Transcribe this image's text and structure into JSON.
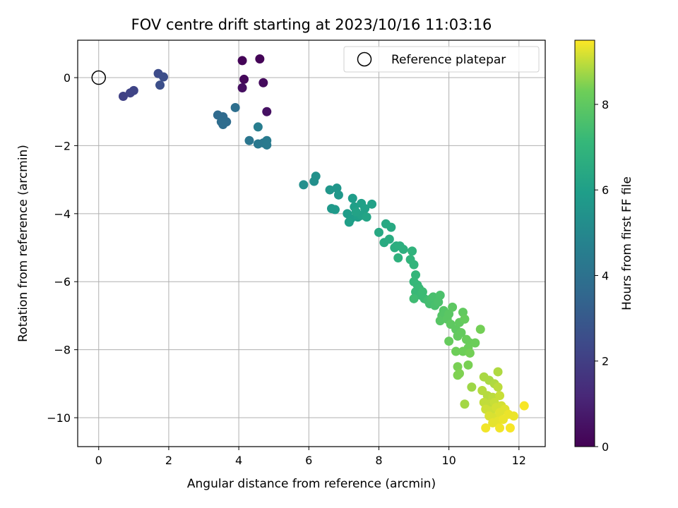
{
  "chart_data": {
    "type": "scatter",
    "title": "FOV centre drift starting at 2023/10/16 11:03:16",
    "xlabel": "Angular distance from reference (arcmin)",
    "ylabel": "Rotation from reference (arcmin)",
    "xlim": [
      -0.6,
      12.75
    ],
    "ylim": [
      -10.85,
      1.1
    ],
    "xticks": [
      0,
      2,
      4,
      6,
      8,
      10,
      12
    ],
    "yticks": [
      0,
      -2,
      -4,
      -6,
      -8,
      -10
    ],
    "xtick_labels": [
      "0",
      "2",
      "4",
      "6",
      "8",
      "10",
      "12"
    ],
    "ytick_labels": [
      "0",
      "−2",
      "−4",
      "−6",
      "−8",
      "−10"
    ],
    "grid": true,
    "legend": {
      "placement": "top-right",
      "entries": [
        "Reference platepar"
      ]
    },
    "reference_point": {
      "x": 0,
      "y": 0
    },
    "colorbar": {
      "label": "Hours from first FF file",
      "colormap": "viridis",
      "range": [
        0,
        9.5
      ],
      "ticks": [
        0,
        2,
        4,
        6,
        8
      ],
      "tick_labels": [
        "0",
        "2",
        "4",
        "6",
        "8"
      ]
    },
    "points": [
      [
        4.1,
        0.5,
        0.1
      ],
      [
        4.6,
        0.55,
        0.1
      ],
      [
        4.15,
        -0.05,
        0.2
      ],
      [
        4.7,
        -0.15,
        0.3
      ],
      [
        4.1,
        -0.3,
        0.4
      ],
      [
        4.8,
        -1.0,
        0.5
      ],
      [
        0.7,
        -0.55,
        2.1
      ],
      [
        0.9,
        -0.45,
        2.15
      ],
      [
        1.0,
        -0.38,
        2.2
      ],
      [
        1.7,
        0.12,
        2.5
      ],
      [
        1.85,
        0.02,
        2.55
      ],
      [
        1.75,
        -0.22,
        2.6
      ],
      [
        3.4,
        -1.1,
        3.7
      ],
      [
        3.55,
        -1.15,
        3.7
      ],
      [
        3.65,
        -1.3,
        3.75
      ],
      [
        3.5,
        -1.3,
        3.8
      ],
      [
        3.55,
        -1.38,
        3.8
      ],
      [
        3.9,
        -0.88,
        3.9
      ],
      [
        4.3,
        -1.85,
        4.2
      ],
      [
        4.55,
        -1.95,
        4.3
      ],
      [
        4.7,
        -1.92,
        4.3
      ],
      [
        4.8,
        -1.85,
        4.4
      ],
      [
        4.8,
        -1.98,
        4.4
      ],
      [
        4.55,
        -1.45,
        4.5
      ],
      [
        5.85,
        -3.15,
        5.3
      ],
      [
        6.15,
        -3.05,
        5.3
      ],
      [
        6.2,
        -2.9,
        5.4
      ],
      [
        6.6,
        -3.3,
        5.6
      ],
      [
        6.8,
        -3.25,
        5.6
      ],
      [
        6.85,
        -3.45,
        5.7
      ],
      [
        6.65,
        -3.85,
        5.7
      ],
      [
        6.75,
        -3.88,
        5.75
      ],
      [
        7.1,
        -4.0,
        5.9
      ],
      [
        7.2,
        -4.15,
        5.9
      ],
      [
        7.25,
        -3.55,
        5.9
      ],
      [
        7.15,
        -4.25,
        6.0
      ],
      [
        7.4,
        -4.1,
        6.0
      ],
      [
        7.3,
        -3.8,
        6.0
      ],
      [
        7.5,
        -3.7,
        6.05
      ],
      [
        7.6,
        -3.85,
        6.1
      ],
      [
        7.8,
        -3.72,
        6.1
      ],
      [
        7.5,
        -4.05,
        6.1
      ],
      [
        7.35,
        -3.95,
        6.15
      ],
      [
        7.65,
        -4.1,
        6.2
      ],
      [
        8.0,
        -4.55,
        6.4
      ],
      [
        8.2,
        -4.3,
        6.4
      ],
      [
        8.35,
        -4.4,
        6.45
      ],
      [
        8.15,
        -4.85,
        6.5
      ],
      [
        8.3,
        -4.75,
        6.55
      ],
      [
        8.5,
        -4.95,
        6.6
      ],
      [
        8.45,
        -5.0,
        6.65
      ],
      [
        8.6,
        -4.95,
        6.7
      ],
      [
        8.7,
        -5.05,
        6.75
      ],
      [
        8.55,
        -5.3,
        6.8
      ],
      [
        8.95,
        -5.1,
        6.9
      ],
      [
        8.9,
        -5.35,
        6.95
      ],
      [
        9.0,
        -5.5,
        7.0
      ],
      [
        9.05,
        -5.8,
        7.05
      ],
      [
        9.0,
        -6.0,
        7.1
      ],
      [
        9.1,
        -6.1,
        7.15
      ],
      [
        9.15,
        -6.2,
        7.2
      ],
      [
        9.05,
        -6.3,
        7.2
      ],
      [
        9.2,
        -6.4,
        7.25
      ],
      [
        9.25,
        -6.3,
        7.3
      ],
      [
        9.3,
        -6.5,
        7.3
      ],
      [
        9.0,
        -6.5,
        7.35
      ],
      [
        9.4,
        -6.55,
        7.4
      ],
      [
        9.45,
        -6.65,
        7.45
      ],
      [
        9.5,
        -6.5,
        7.5
      ],
      [
        9.6,
        -6.7,
        7.55
      ],
      [
        9.55,
        -6.45,
        7.55
      ],
      [
        9.7,
        -6.6,
        7.6
      ],
      [
        9.75,
        -6.4,
        7.6
      ],
      [
        9.8,
        -7.0,
        7.8
      ],
      [
        9.85,
        -6.85,
        7.8
      ],
      [
        9.75,
        -7.15,
        7.85
      ],
      [
        9.95,
        -7.1,
        7.9
      ],
      [
        10.0,
        -6.95,
        7.9
      ],
      [
        10.1,
        -6.75,
        7.95
      ],
      [
        10.05,
        -7.25,
        8.0
      ],
      [
        10.2,
        -7.4,
        8.0
      ],
      [
        10.3,
        -7.2,
        8.05
      ],
      [
        10.4,
        -6.9,
        8.05
      ],
      [
        10.35,
        -7.5,
        8.1
      ],
      [
        10.25,
        -7.6,
        8.1
      ],
      [
        10.0,
        -7.75,
        8.15
      ],
      [
        10.45,
        -7.1,
        8.15
      ],
      [
        10.5,
        -7.7,
        8.2
      ],
      [
        10.6,
        -7.8,
        8.2
      ],
      [
        10.55,
        -7.95,
        8.25
      ],
      [
        10.75,
        -7.8,
        8.25
      ],
      [
        10.2,
        -8.05,
        8.3
      ],
      [
        10.4,
        -8.05,
        8.3
      ],
      [
        10.6,
        -8.1,
        8.35
      ],
      [
        10.9,
        -7.4,
        8.35
      ],
      [
        10.25,
        -8.5,
        8.4
      ],
      [
        10.55,
        -8.45,
        8.4
      ],
      [
        10.3,
        -8.7,
        8.45
      ],
      [
        10.25,
        -8.75,
        8.45
      ],
      [
        10.65,
        -9.1,
        8.7
      ],
      [
        10.45,
        -9.6,
        8.75
      ],
      [
        11.0,
        -8.8,
        8.8
      ],
      [
        11.15,
        -8.9,
        8.8
      ],
      [
        11.3,
        -9.0,
        8.85
      ],
      [
        11.4,
        -8.65,
        8.85
      ],
      [
        10.95,
        -9.2,
        8.9
      ],
      [
        11.1,
        -9.35,
        8.9
      ],
      [
        11.25,
        -9.4,
        8.95
      ],
      [
        11.4,
        -9.1,
        8.95
      ],
      [
        11.0,
        -9.55,
        9.0
      ],
      [
        11.15,
        -9.6,
        9.0
      ],
      [
        11.3,
        -9.55,
        9.05
      ],
      [
        11.45,
        -9.35,
        9.05
      ],
      [
        11.05,
        -9.75,
        9.1
      ],
      [
        11.2,
        -9.8,
        9.1
      ],
      [
        11.35,
        -9.7,
        9.15
      ],
      [
        11.5,
        -9.65,
        9.15
      ],
      [
        11.15,
        -9.95,
        9.2
      ],
      [
        11.3,
        -10.0,
        9.2
      ],
      [
        11.45,
        -9.85,
        9.25
      ],
      [
        11.6,
        -9.75,
        9.25
      ],
      [
        11.25,
        -10.15,
        9.3
      ],
      [
        11.4,
        -10.1,
        9.3
      ],
      [
        11.55,
        -10.05,
        9.35
      ],
      [
        11.7,
        -9.9,
        9.35
      ],
      [
        11.85,
        -9.95,
        9.35
      ],
      [
        11.05,
        -10.3,
        9.4
      ],
      [
        11.45,
        -10.3,
        9.4
      ],
      [
        11.75,
        -10.3,
        9.45
      ],
      [
        12.15,
        -9.65,
        9.45
      ]
    ]
  }
}
